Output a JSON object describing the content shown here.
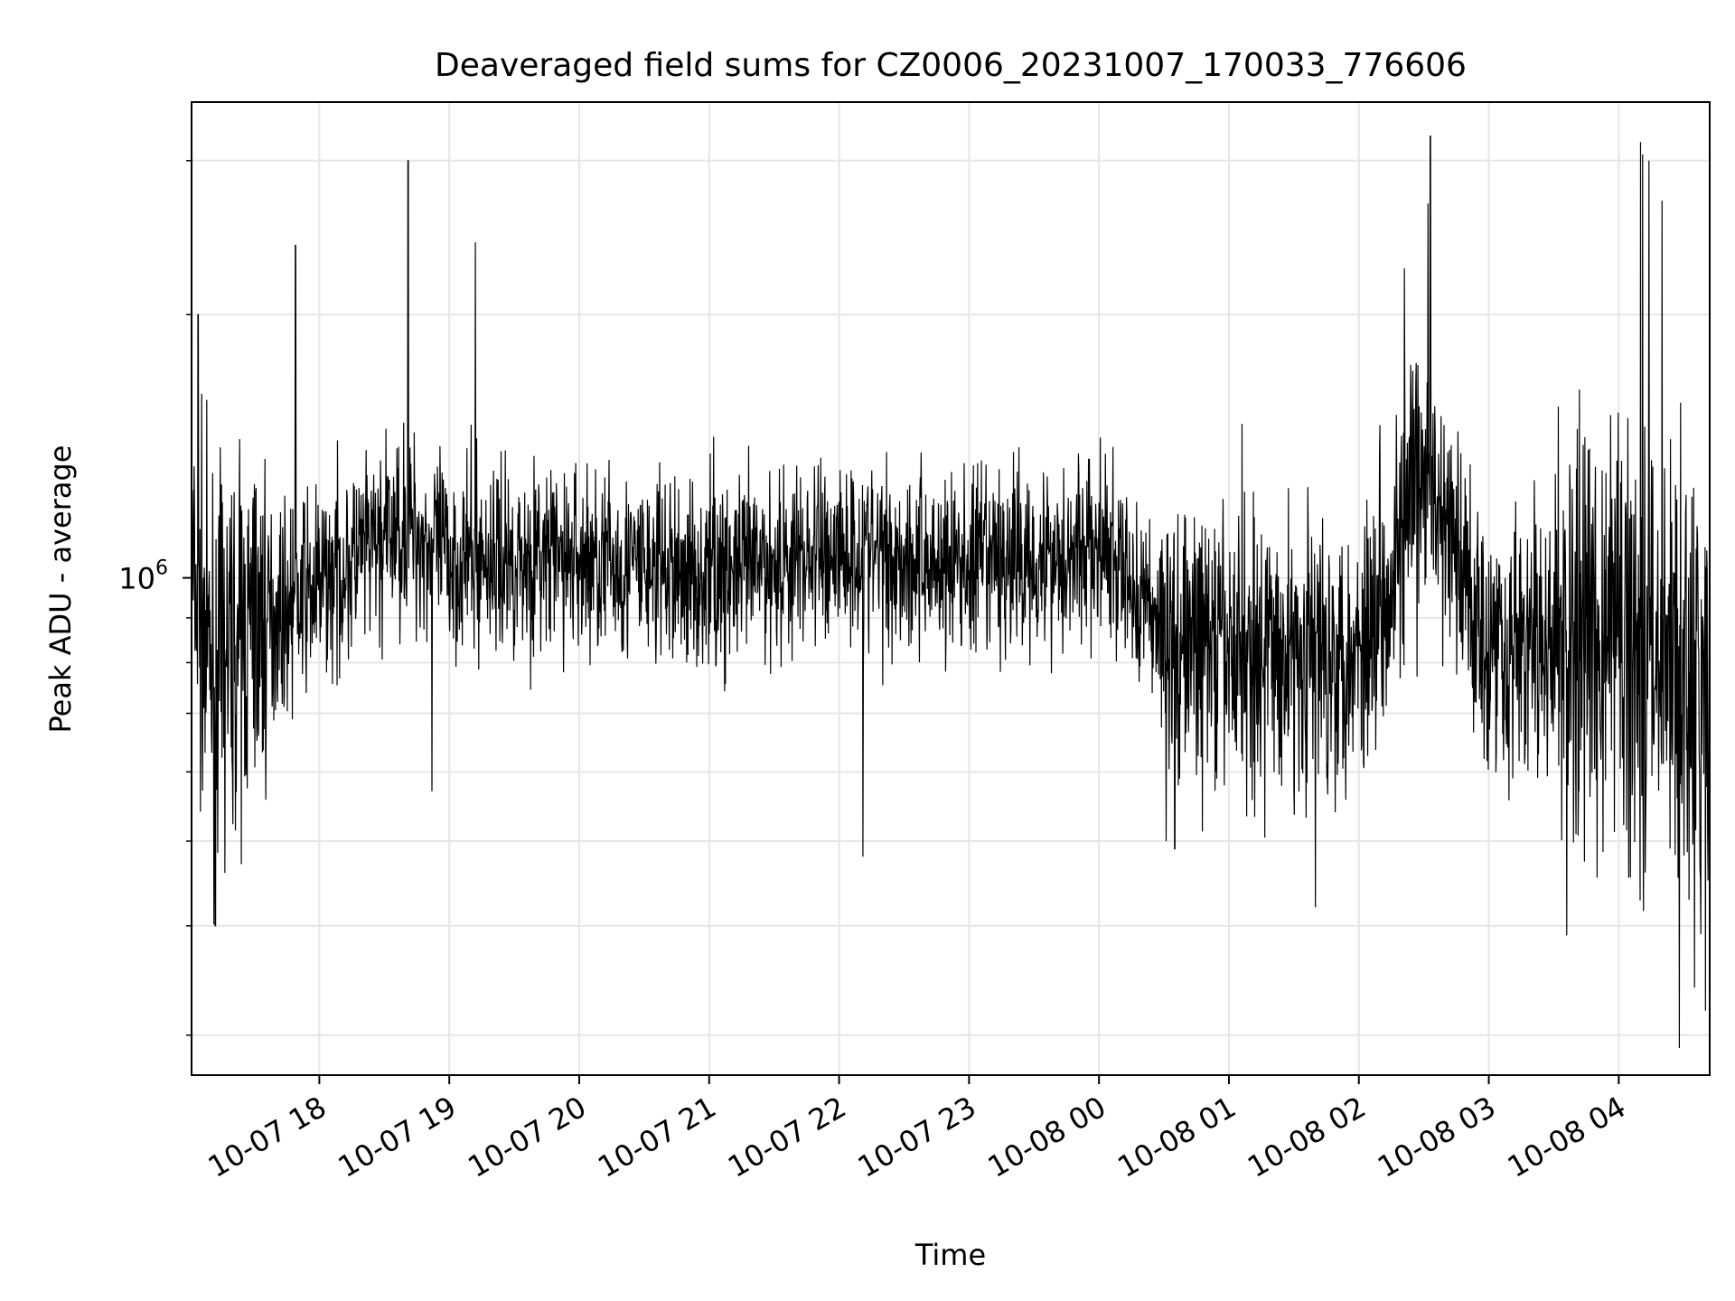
{
  "chart_data": {
    "type": "line",
    "title": "Deaveraged field sums for CZ0006_20231007_170033_776606",
    "xlabel": "Time",
    "ylabel": "Peak ADU - average",
    "yscale": "log",
    "grid": true,
    "legend": "none",
    "series_color": "#000000",
    "grid_color": "#e6e6e6",
    "xlim": [
      "2023-10-07 17:01",
      "2023-10-08 04:42"
    ],
    "ylim": [
      270000,
      3500000
    ],
    "x_ticks": [
      {
        "value": "2023-10-07 18:00",
        "label": "10-07 18"
      },
      {
        "value": "2023-10-07 19:00",
        "label": "10-07 19"
      },
      {
        "value": "2023-10-07 20:00",
        "label": "10-07 20"
      },
      {
        "value": "2023-10-07 21:00",
        "label": "10-07 21"
      },
      {
        "value": "2023-10-07 22:00",
        "label": "10-07 22"
      },
      {
        "value": "2023-10-07 23:00",
        "label": "10-07 23"
      },
      {
        "value": "2023-10-08 00:00",
        "label": "10-08 00"
      },
      {
        "value": "2023-10-08 01:00",
        "label": "10-08 01"
      },
      {
        "value": "2023-10-08 02:00",
        "label": "10-08 02"
      },
      {
        "value": "2023-10-08 03:00",
        "label": "10-08 03"
      },
      {
        "value": "2023-10-08 04:00",
        "label": "10-08 04"
      }
    ],
    "y_major_ticks": [
      {
        "value": 1000000,
        "base": "10",
        "exponent": "6"
      }
    ],
    "y_minor_ticks": [
      300000,
      400000,
      500000,
      600000,
      700000,
      800000,
      900000,
      2000000,
      3000000
    ],
    "envelope": {
      "description_times": [
        "2023-10-07 17:01",
        "2023-10-07 17:10",
        "2023-10-07 17:30",
        "2023-10-07 18:00",
        "2023-10-07 18:40",
        "2023-10-07 19:00",
        "2023-10-07 20:00",
        "2023-10-07 21:00",
        "2023-10-07 22:00",
        "2023-10-07 23:00",
        "2023-10-08 00:00",
        "2023-10-08 00:35",
        "2023-10-08 01:00",
        "2023-10-08 02:00",
        "2023-10-08 02:30",
        "2023-10-08 03:00",
        "2023-10-08 03:30",
        "2023-10-08 04:00",
        "2023-10-08 04:42"
      ],
      "median": [
        1000000,
        780000,
        880000,
        980000,
        1150000,
        1050000,
        1050000,
        1000000,
        1080000,
        1030000,
        1080000,
        850000,
        820000,
        830000,
        1300000,
        850000,
        830000,
        880000,
        700000
      ]
    },
    "spikes": [
      {
        "x": "2023-10-07 17:04",
        "y": 2000000
      },
      {
        "x": "2023-10-07 17:12",
        "y": 400000
      },
      {
        "x": "2023-10-07 17:30",
        "y": 1280000
      },
      {
        "x": "2023-10-07 17:49",
        "y": 2400000
      },
      {
        "x": "2023-10-07 18:41",
        "y": 3000000
      },
      {
        "x": "2023-10-07 18:52",
        "y": 570000
      },
      {
        "x": "2023-10-07 19:12",
        "y": 2420000
      },
      {
        "x": "2023-10-07 21:02",
        "y": 1450000
      },
      {
        "x": "2023-10-07 22:11",
        "y": 480000
      },
      {
        "x": "2023-10-08 00:31",
        "y": 500000
      },
      {
        "x": "2023-10-08 00:35",
        "y": 490000
      },
      {
        "x": "2023-10-08 01:06",
        "y": 1500000
      },
      {
        "x": "2023-10-08 01:40",
        "y": 420000
      },
      {
        "x": "2023-10-08 02:21",
        "y": 2260000
      },
      {
        "x": "2023-10-08 02:32",
        "y": 2680000
      },
      {
        "x": "2023-10-08 02:33",
        "y": 3200000
      },
      {
        "x": "2023-10-08 04:10",
        "y": 3150000
      },
      {
        "x": "2023-10-08 04:11",
        "y": 3050000
      },
      {
        "x": "2023-10-08 04:14",
        "y": 3000000
      },
      {
        "x": "2023-10-08 04:20",
        "y": 2700000
      },
      {
        "x": "2023-10-08 04:28",
        "y": 290000
      },
      {
        "x": "2023-10-08 04:35",
        "y": 340000
      },
      {
        "x": "2023-10-08 04:40",
        "y": 320000
      }
    ]
  }
}
